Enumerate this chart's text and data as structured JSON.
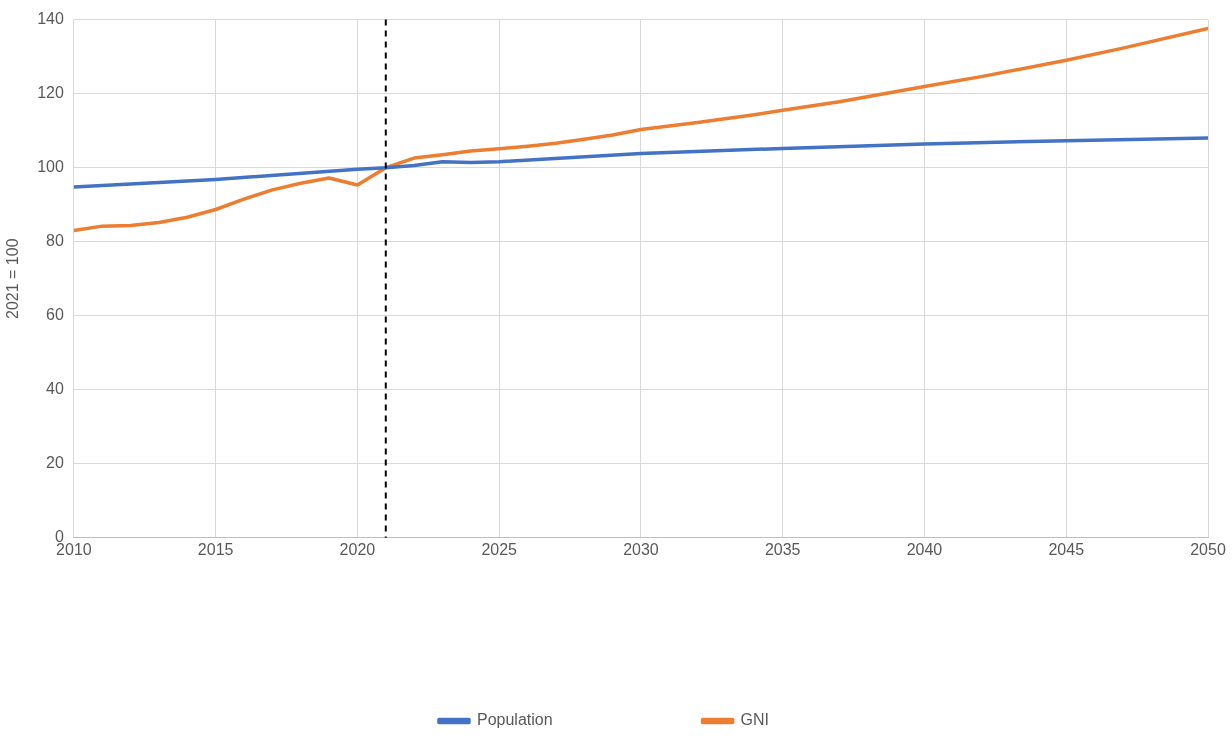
{
  "chart_data": {
    "type": "line",
    "ylabel": "2021 = 100",
    "xlim": [
      2010,
      2050
    ],
    "xticks": [
      2010,
      2015,
      2020,
      2025,
      2030,
      2035,
      2040,
      2045,
      2050
    ],
    "ylim": [
      0,
      140
    ],
    "yticks": [
      0,
      20,
      40,
      60,
      80,
      100,
      120,
      140
    ],
    "grid": true,
    "legend": "bottom",
    "marker": "none",
    "line_style": "solid",
    "ref_lines": [
      {
        "axis": "x",
        "value": 2021,
        "color": "#000000",
        "line_style": "dashed"
      }
    ],
    "series": [
      {
        "name": "Population",
        "color": "#4472c4",
        "x": [
          2010,
          2015,
          2020,
          2021,
          2022,
          2023,
          2024,
          2025,
          2030,
          2035,
          2040,
          2045,
          2050
        ],
        "values": [
          94.8,
          96.8,
          99.6,
          100,
          100.6,
          101.6,
          101.4,
          101.6,
          103.8,
          105.2,
          106.4,
          107.3,
          108
        ]
      },
      {
        "name": "GNI",
        "color": "#ed7d31",
        "x": [
          2010,
          2011,
          2012,
          2013,
          2014,
          2015,
          2016,
          2017,
          2018,
          2019,
          2020,
          2021,
          2022,
          2023,
          2024,
          2025,
          2026,
          2027,
          2028,
          2029,
          2030,
          2032,
          2034,
          2035,
          2037,
          2040,
          2042,
          2045,
          2047,
          2050
        ],
        "values": [
          83,
          84.2,
          84.4,
          85.2,
          86.6,
          88.7,
          91.5,
          94,
          95.8,
          97.2,
          95.3,
          100,
          102.6,
          103.5,
          104.5,
          105.1,
          105.8,
          106.6,
          107.7,
          108.8,
          110.3,
          112.2,
          114.3,
          115.5,
          117.8,
          121.9,
          124.6,
          129,
          132.3,
          137.6
        ]
      }
    ]
  }
}
